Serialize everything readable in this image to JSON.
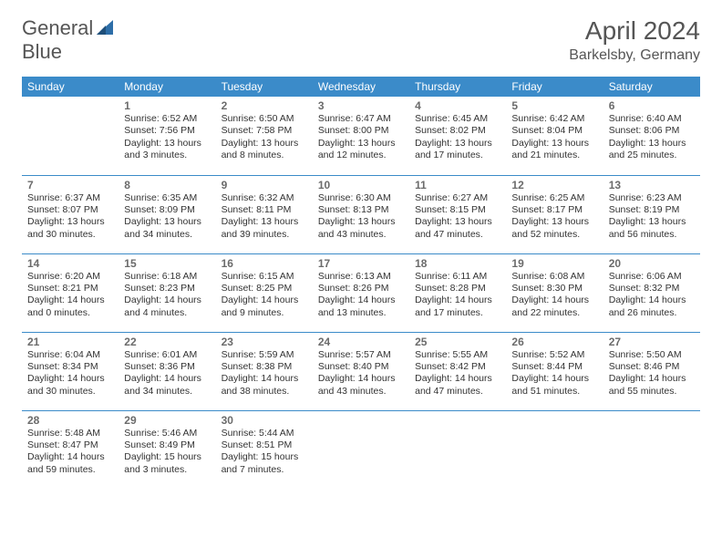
{
  "logo": {
    "text_left": "General",
    "text_right": "Blue",
    "icon_name": "sail-icon",
    "color": "#2d6ea8"
  },
  "title": "April 2024",
  "location": "Barkelsby, Germany",
  "colors": {
    "header_bg": "#3b8bc9",
    "header_text": "#ffffff",
    "border": "#3b8bc9",
    "text": "#333333",
    "muted": "#555555"
  },
  "dayHeaders": [
    "Sunday",
    "Monday",
    "Tuesday",
    "Wednesday",
    "Thursday",
    "Friday",
    "Saturday"
  ],
  "weeks": [
    [
      null,
      {
        "n": "1",
        "sr": "6:52 AM",
        "ss": "7:56 PM",
        "dl": "13 hours and 3 minutes."
      },
      {
        "n": "2",
        "sr": "6:50 AM",
        "ss": "7:58 PM",
        "dl": "13 hours and 8 minutes."
      },
      {
        "n": "3",
        "sr": "6:47 AM",
        "ss": "8:00 PM",
        "dl": "13 hours and 12 minutes."
      },
      {
        "n": "4",
        "sr": "6:45 AM",
        "ss": "8:02 PM",
        "dl": "13 hours and 17 minutes."
      },
      {
        "n": "5",
        "sr": "6:42 AM",
        "ss": "8:04 PM",
        "dl": "13 hours and 21 minutes."
      },
      {
        "n": "6",
        "sr": "6:40 AM",
        "ss": "8:06 PM",
        "dl": "13 hours and 25 minutes."
      }
    ],
    [
      {
        "n": "7",
        "sr": "6:37 AM",
        "ss": "8:07 PM",
        "dl": "13 hours and 30 minutes."
      },
      {
        "n": "8",
        "sr": "6:35 AM",
        "ss": "8:09 PM",
        "dl": "13 hours and 34 minutes."
      },
      {
        "n": "9",
        "sr": "6:32 AM",
        "ss": "8:11 PM",
        "dl": "13 hours and 39 minutes."
      },
      {
        "n": "10",
        "sr": "6:30 AM",
        "ss": "8:13 PM",
        "dl": "13 hours and 43 minutes."
      },
      {
        "n": "11",
        "sr": "6:27 AM",
        "ss": "8:15 PM",
        "dl": "13 hours and 47 minutes."
      },
      {
        "n": "12",
        "sr": "6:25 AM",
        "ss": "8:17 PM",
        "dl": "13 hours and 52 minutes."
      },
      {
        "n": "13",
        "sr": "6:23 AM",
        "ss": "8:19 PM",
        "dl": "13 hours and 56 minutes."
      }
    ],
    [
      {
        "n": "14",
        "sr": "6:20 AM",
        "ss": "8:21 PM",
        "dl": "14 hours and 0 minutes."
      },
      {
        "n": "15",
        "sr": "6:18 AM",
        "ss": "8:23 PM",
        "dl": "14 hours and 4 minutes."
      },
      {
        "n": "16",
        "sr": "6:15 AM",
        "ss": "8:25 PM",
        "dl": "14 hours and 9 minutes."
      },
      {
        "n": "17",
        "sr": "6:13 AM",
        "ss": "8:26 PM",
        "dl": "14 hours and 13 minutes."
      },
      {
        "n": "18",
        "sr": "6:11 AM",
        "ss": "8:28 PM",
        "dl": "14 hours and 17 minutes."
      },
      {
        "n": "19",
        "sr": "6:08 AM",
        "ss": "8:30 PM",
        "dl": "14 hours and 22 minutes."
      },
      {
        "n": "20",
        "sr": "6:06 AM",
        "ss": "8:32 PM",
        "dl": "14 hours and 26 minutes."
      }
    ],
    [
      {
        "n": "21",
        "sr": "6:04 AM",
        "ss": "8:34 PM",
        "dl": "14 hours and 30 minutes."
      },
      {
        "n": "22",
        "sr": "6:01 AM",
        "ss": "8:36 PM",
        "dl": "14 hours and 34 minutes."
      },
      {
        "n": "23",
        "sr": "5:59 AM",
        "ss": "8:38 PM",
        "dl": "14 hours and 38 minutes."
      },
      {
        "n": "24",
        "sr": "5:57 AM",
        "ss": "8:40 PM",
        "dl": "14 hours and 43 minutes."
      },
      {
        "n": "25",
        "sr": "5:55 AM",
        "ss": "8:42 PM",
        "dl": "14 hours and 47 minutes."
      },
      {
        "n": "26",
        "sr": "5:52 AM",
        "ss": "8:44 PM",
        "dl": "14 hours and 51 minutes."
      },
      {
        "n": "27",
        "sr": "5:50 AM",
        "ss": "8:46 PM",
        "dl": "14 hours and 55 minutes."
      }
    ],
    [
      {
        "n": "28",
        "sr": "5:48 AM",
        "ss": "8:47 PM",
        "dl": "14 hours and 59 minutes."
      },
      {
        "n": "29",
        "sr": "5:46 AM",
        "ss": "8:49 PM",
        "dl": "15 hours and 3 minutes."
      },
      {
        "n": "30",
        "sr": "5:44 AM",
        "ss": "8:51 PM",
        "dl": "15 hours and 7 minutes."
      },
      null,
      null,
      null,
      null
    ]
  ],
  "labels": {
    "sunrise": "Sunrise:",
    "sunset": "Sunset:",
    "daylight": "Daylight:"
  }
}
